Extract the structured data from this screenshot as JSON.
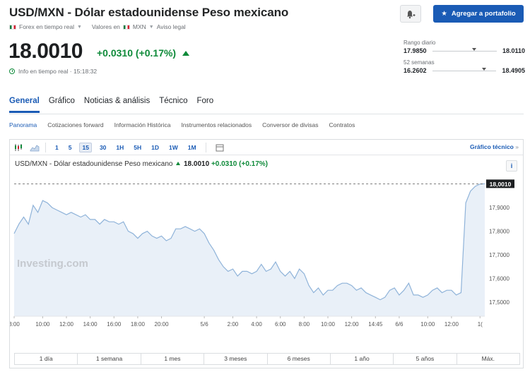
{
  "header": {
    "title": "USD/MXN - Dólar estadounidense Peso mexicano",
    "meta_market": "Forex en tiempo real",
    "meta_values": "Valores en",
    "meta_currency": "MXN",
    "meta_legal": "Aviso legal",
    "price": "18.0010",
    "change": "+0.0310",
    "change_pct": "(+0.17%)",
    "realtime_label": "Info en tiempo real · 15:18:32",
    "add_button": "Agregar a portafolio"
  },
  "ranges": {
    "daily_label": "Rango diario",
    "daily_low": "17.9850",
    "daily_high": "18.0110",
    "daily_position": 0.62,
    "week52_label": "52 semanas",
    "week52_low": "16.2602",
    "week52_high": "18.4905",
    "week52_position": 0.78
  },
  "tabs": [
    "General",
    "Gráfico",
    "Noticias & análisis",
    "Técnico",
    "Foro"
  ],
  "subtabs": [
    "Panorama",
    "Cotizaciones forward",
    "Información Histórica",
    "Instrumentos relacionados",
    "Conversor de divisas",
    "Contratos"
  ],
  "toolbar": {
    "timeframes": [
      "1",
      "5",
      "15",
      "30",
      "1H",
      "5H",
      "1D",
      "1W",
      "1M"
    ],
    "active_timeframe": "15",
    "tech_link": "Gráfico técnico",
    "tech_arrow": "»"
  },
  "chart_header": {
    "name": "USD/MXN - Dólar estadounidense Peso mexicano",
    "price": "18.0010",
    "change": "+0.0310",
    "change_pct": "(+0.17%)",
    "info": "i"
  },
  "periods": [
    "1 día",
    "1 semana",
    "1 mes",
    "3 meses",
    "6 meses",
    "1 año",
    "5 años",
    "Máx."
  ],
  "colors": {
    "accent": "#1a5bb5",
    "positive": "#0e8a39",
    "line": "#8fb3d9",
    "area": "#e9f0f8"
  },
  "watermark": "Investing.com",
  "chart_data": {
    "type": "area",
    "y_ticks": [
      "17,9000",
      "17,8000",
      "17,7000",
      "17,6000",
      "17,5000"
    ],
    "y_tick_values": [
      17.9,
      17.8,
      17.7,
      17.6,
      17.5
    ],
    "ylim": [
      17.44,
      18.02
    ],
    "current_label": "18,0010",
    "current_value": 18.001,
    "x_ticks": [
      "3:00",
      "10:00",
      "12:00",
      "14:00",
      "16:00",
      "18:00",
      "20:00",
      "5/6",
      "2:00",
      "4:00",
      "6:00",
      "8:00",
      "10:00",
      "12:00",
      "14:45",
      "6/6",
      "10:00",
      "12:00",
      "1("
    ],
    "x_tick_index": [
      0,
      6,
      11,
      16,
      21,
      26,
      31,
      40,
      46,
      51,
      56,
      61,
      66,
      71,
      76,
      81,
      87,
      92,
      98
    ],
    "values": [
      17.79,
      17.83,
      17.86,
      17.83,
      17.91,
      17.88,
      17.93,
      17.92,
      17.9,
      17.89,
      17.88,
      17.87,
      17.88,
      17.87,
      17.86,
      17.87,
      17.85,
      17.85,
      17.83,
      17.85,
      17.84,
      17.84,
      17.83,
      17.84,
      17.8,
      17.79,
      17.77,
      17.79,
      17.8,
      17.78,
      17.77,
      17.78,
      17.76,
      17.77,
      17.81,
      17.81,
      17.82,
      17.81,
      17.8,
      17.81,
      17.79,
      17.75,
      17.72,
      17.68,
      17.65,
      17.63,
      17.64,
      17.61,
      17.63,
      17.63,
      17.62,
      17.63,
      17.66,
      17.63,
      17.64,
      17.67,
      17.63,
      17.61,
      17.63,
      17.6,
      17.64,
      17.62,
      17.57,
      17.54,
      17.56,
      17.53,
      17.55,
      17.55,
      17.57,
      17.58,
      17.58,
      17.57,
      17.55,
      17.56,
      17.54,
      17.53,
      17.52,
      17.51,
      17.52,
      17.55,
      17.56,
      17.53,
      17.55,
      17.58,
      17.53,
      17.53,
      17.52,
      17.53,
      17.55,
      17.56,
      17.54,
      17.55,
      17.55,
      17.53,
      17.54,
      17.92,
      17.97,
      17.99,
      18.0,
      18.001
    ]
  }
}
